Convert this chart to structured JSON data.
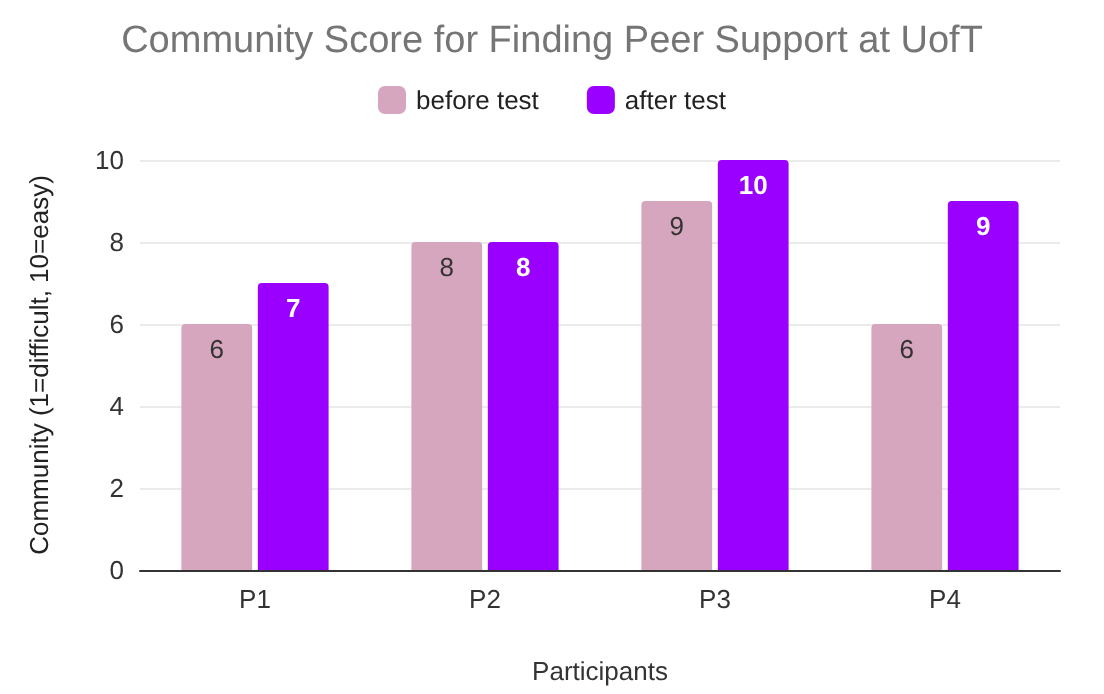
{
  "chart_data": {
    "type": "bar",
    "title": "Community Score for Finding Peer Support at UofT",
    "xlabel": "Participants",
    "ylabel": "Community (1=difficult, 10=easy)",
    "categories": [
      "P1",
      "P2",
      "P3",
      "P4"
    ],
    "series": [
      {
        "name": "before test",
        "color": "#d5a6bd",
        "values": [
          6,
          8,
          9,
          6
        ]
      },
      {
        "name": "after test",
        "color": "#9900ff",
        "values": [
          7,
          8,
          10,
          9
        ]
      }
    ],
    "ylim": [
      0,
      10
    ],
    "yticks": [
      0,
      2,
      4,
      6,
      8,
      10
    ],
    "grid": "y",
    "legend": "top",
    "data_labels": true
  }
}
